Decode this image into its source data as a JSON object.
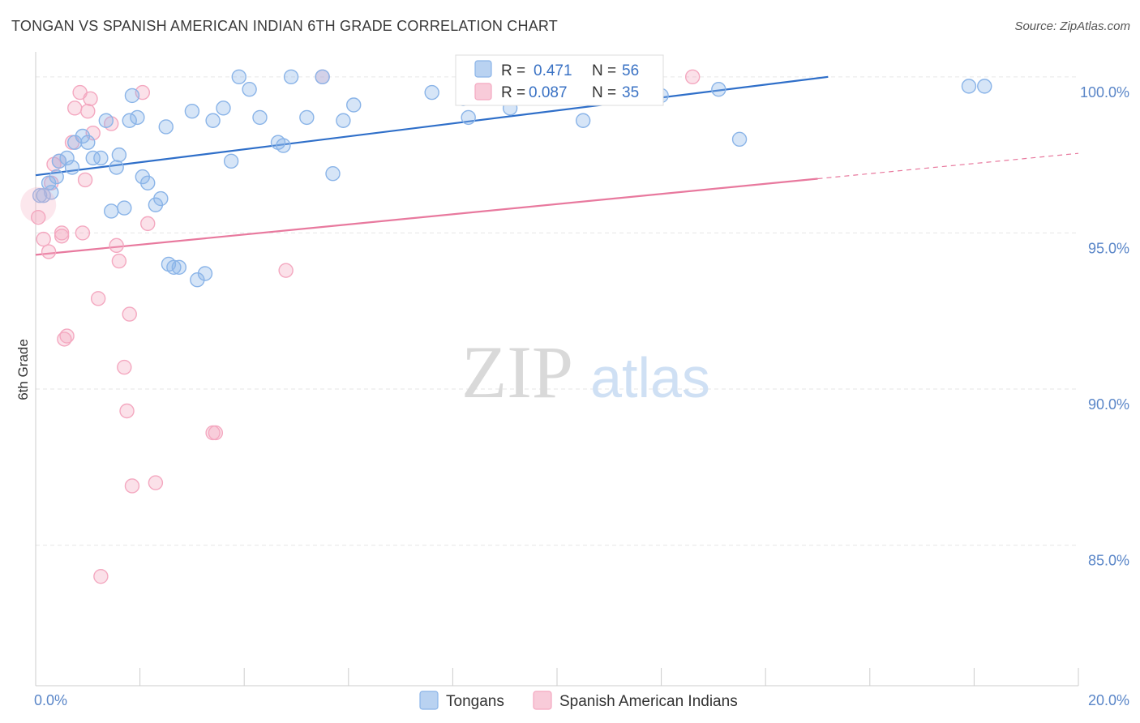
{
  "title": "TONGAN VS SPANISH AMERICAN INDIAN 6TH GRADE CORRELATION CHART",
  "source": "Source: ZipAtlas.com",
  "watermark": {
    "zip": "ZIP",
    "atlas": "atlas"
  },
  "chart_data": {
    "type": "scatter",
    "ylabel": "6th Grade",
    "xlim": [
      0,
      20
    ],
    "ylim": [
      80.5,
      100.8
    ],
    "x_tick_labels": [
      {
        "value": 0,
        "label": "0.0%"
      },
      {
        "value": 20,
        "label": "20.0%"
      }
    ],
    "y_tick_labels": [
      {
        "value": 100,
        "label": "100.0%"
      },
      {
        "value": 95,
        "label": "95.0%"
      },
      {
        "value": 90,
        "label": "90.0%"
      },
      {
        "value": 85,
        "label": "85.0%"
      }
    ],
    "legend": {
      "position": "top-center",
      "rows": [
        {
          "series": "Tongans",
          "r_label": "R = ",
          "r_value": "0.471",
          "n_label": "N = ",
          "n_value": "56",
          "color": "#8ab4e8"
        },
        {
          "series": "Spanish American Indians",
          "r_label": "R = ",
          "r_value": "0.087",
          "n_label": "N = ",
          "n_value": "35",
          "color": "#f4a8c0"
        }
      ]
    },
    "series": [
      {
        "name": "Tongans",
        "color": "#8ab4e8",
        "line_color": "#2f6fc9",
        "trend": {
          "x0": 0,
          "y0": 96.85,
          "x1": 15.2,
          "y1": 100.0,
          "dash_to": 15.2
        },
        "points": [
          [
            0.08,
            96.2
          ],
          [
            0.15,
            96.2
          ],
          [
            0.3,
            96.3
          ],
          [
            0.25,
            96.6
          ],
          [
            0.4,
            96.8
          ],
          [
            0.45,
            97.3
          ],
          [
            0.6,
            97.4
          ],
          [
            0.7,
            97.1
          ],
          [
            0.75,
            97.9
          ],
          [
            0.9,
            98.1
          ],
          [
            1.0,
            97.9
          ],
          [
            1.1,
            97.4
          ],
          [
            1.25,
            97.4
          ],
          [
            1.35,
            98.6
          ],
          [
            1.45,
            95.7
          ],
          [
            1.55,
            97.1
          ],
          [
            1.6,
            97.5
          ],
          [
            1.7,
            95.8
          ],
          [
            1.8,
            98.6
          ],
          [
            1.85,
            99.4
          ],
          [
            1.95,
            98.7
          ],
          [
            2.05,
            96.8
          ],
          [
            2.15,
            96.6
          ],
          [
            2.3,
            95.9
          ],
          [
            2.4,
            96.1
          ],
          [
            2.5,
            98.4
          ],
          [
            2.55,
            94.0
          ],
          [
            2.65,
            93.9
          ],
          [
            2.75,
            93.9
          ],
          [
            3.0,
            98.9
          ],
          [
            3.1,
            93.5
          ],
          [
            3.25,
            93.7
          ],
          [
            3.4,
            98.6
          ],
          [
            3.6,
            99.0
          ],
          [
            3.75,
            97.3
          ],
          [
            3.9,
            100.0
          ],
          [
            4.1,
            99.6
          ],
          [
            4.3,
            98.7
          ],
          [
            4.65,
            97.9
          ],
          [
            4.75,
            97.8
          ],
          [
            4.9,
            100.0
          ],
          [
            5.2,
            98.7
          ],
          [
            5.5,
            100.0
          ],
          [
            5.7,
            96.9
          ],
          [
            5.9,
            98.6
          ],
          [
            6.1,
            99.1
          ],
          [
            7.6,
            99.5
          ],
          [
            8.2,
            99.3
          ],
          [
            8.3,
            98.7
          ],
          [
            9.1,
            99.0
          ],
          [
            10.5,
            98.6
          ],
          [
            12.0,
            99.4
          ],
          [
            13.5,
            98.0
          ],
          [
            13.1,
            99.6
          ],
          [
            17.9,
            99.7
          ],
          [
            18.2,
            99.7
          ]
        ]
      },
      {
        "name": "Spanish American Indians",
        "color": "#f4a8c0",
        "line_color": "#e8799e",
        "trend": {
          "x0": 0,
          "y0": 94.3,
          "x1": 20,
          "y1": 97.55,
          "dash_to": 15.0
        },
        "points": [
          [
            0.05,
            95.5
          ],
          [
            0.15,
            94.8
          ],
          [
            0.25,
            94.4
          ],
          [
            0.3,
            96.6
          ],
          [
            0.35,
            97.2
          ],
          [
            0.45,
            97.3
          ],
          [
            0.5,
            94.9
          ],
          [
            0.5,
            95.0
          ],
          [
            0.55,
            91.6
          ],
          [
            0.6,
            91.7
          ],
          [
            0.7,
            97.9
          ],
          [
            0.75,
            99.0
          ],
          [
            0.85,
            99.5
          ],
          [
            0.9,
            95.0
          ],
          [
            0.95,
            96.7
          ],
          [
            1.0,
            98.9
          ],
          [
            1.05,
            99.3
          ],
          [
            1.1,
            98.2
          ],
          [
            1.2,
            92.9
          ],
          [
            1.25,
            84.0
          ],
          [
            1.45,
            98.5
          ],
          [
            1.55,
            94.6
          ],
          [
            1.6,
            94.1
          ],
          [
            1.7,
            90.7
          ],
          [
            1.75,
            89.3
          ],
          [
            1.8,
            92.4
          ],
          [
            1.85,
            86.9
          ],
          [
            2.05,
            99.5
          ],
          [
            2.15,
            95.3
          ],
          [
            2.3,
            87.0
          ],
          [
            3.4,
            88.6
          ],
          [
            3.45,
            88.6
          ],
          [
            4.8,
            93.8
          ],
          [
            5.5,
            100.0
          ],
          [
            12.6,
            100.0
          ]
        ]
      }
    ]
  }
}
